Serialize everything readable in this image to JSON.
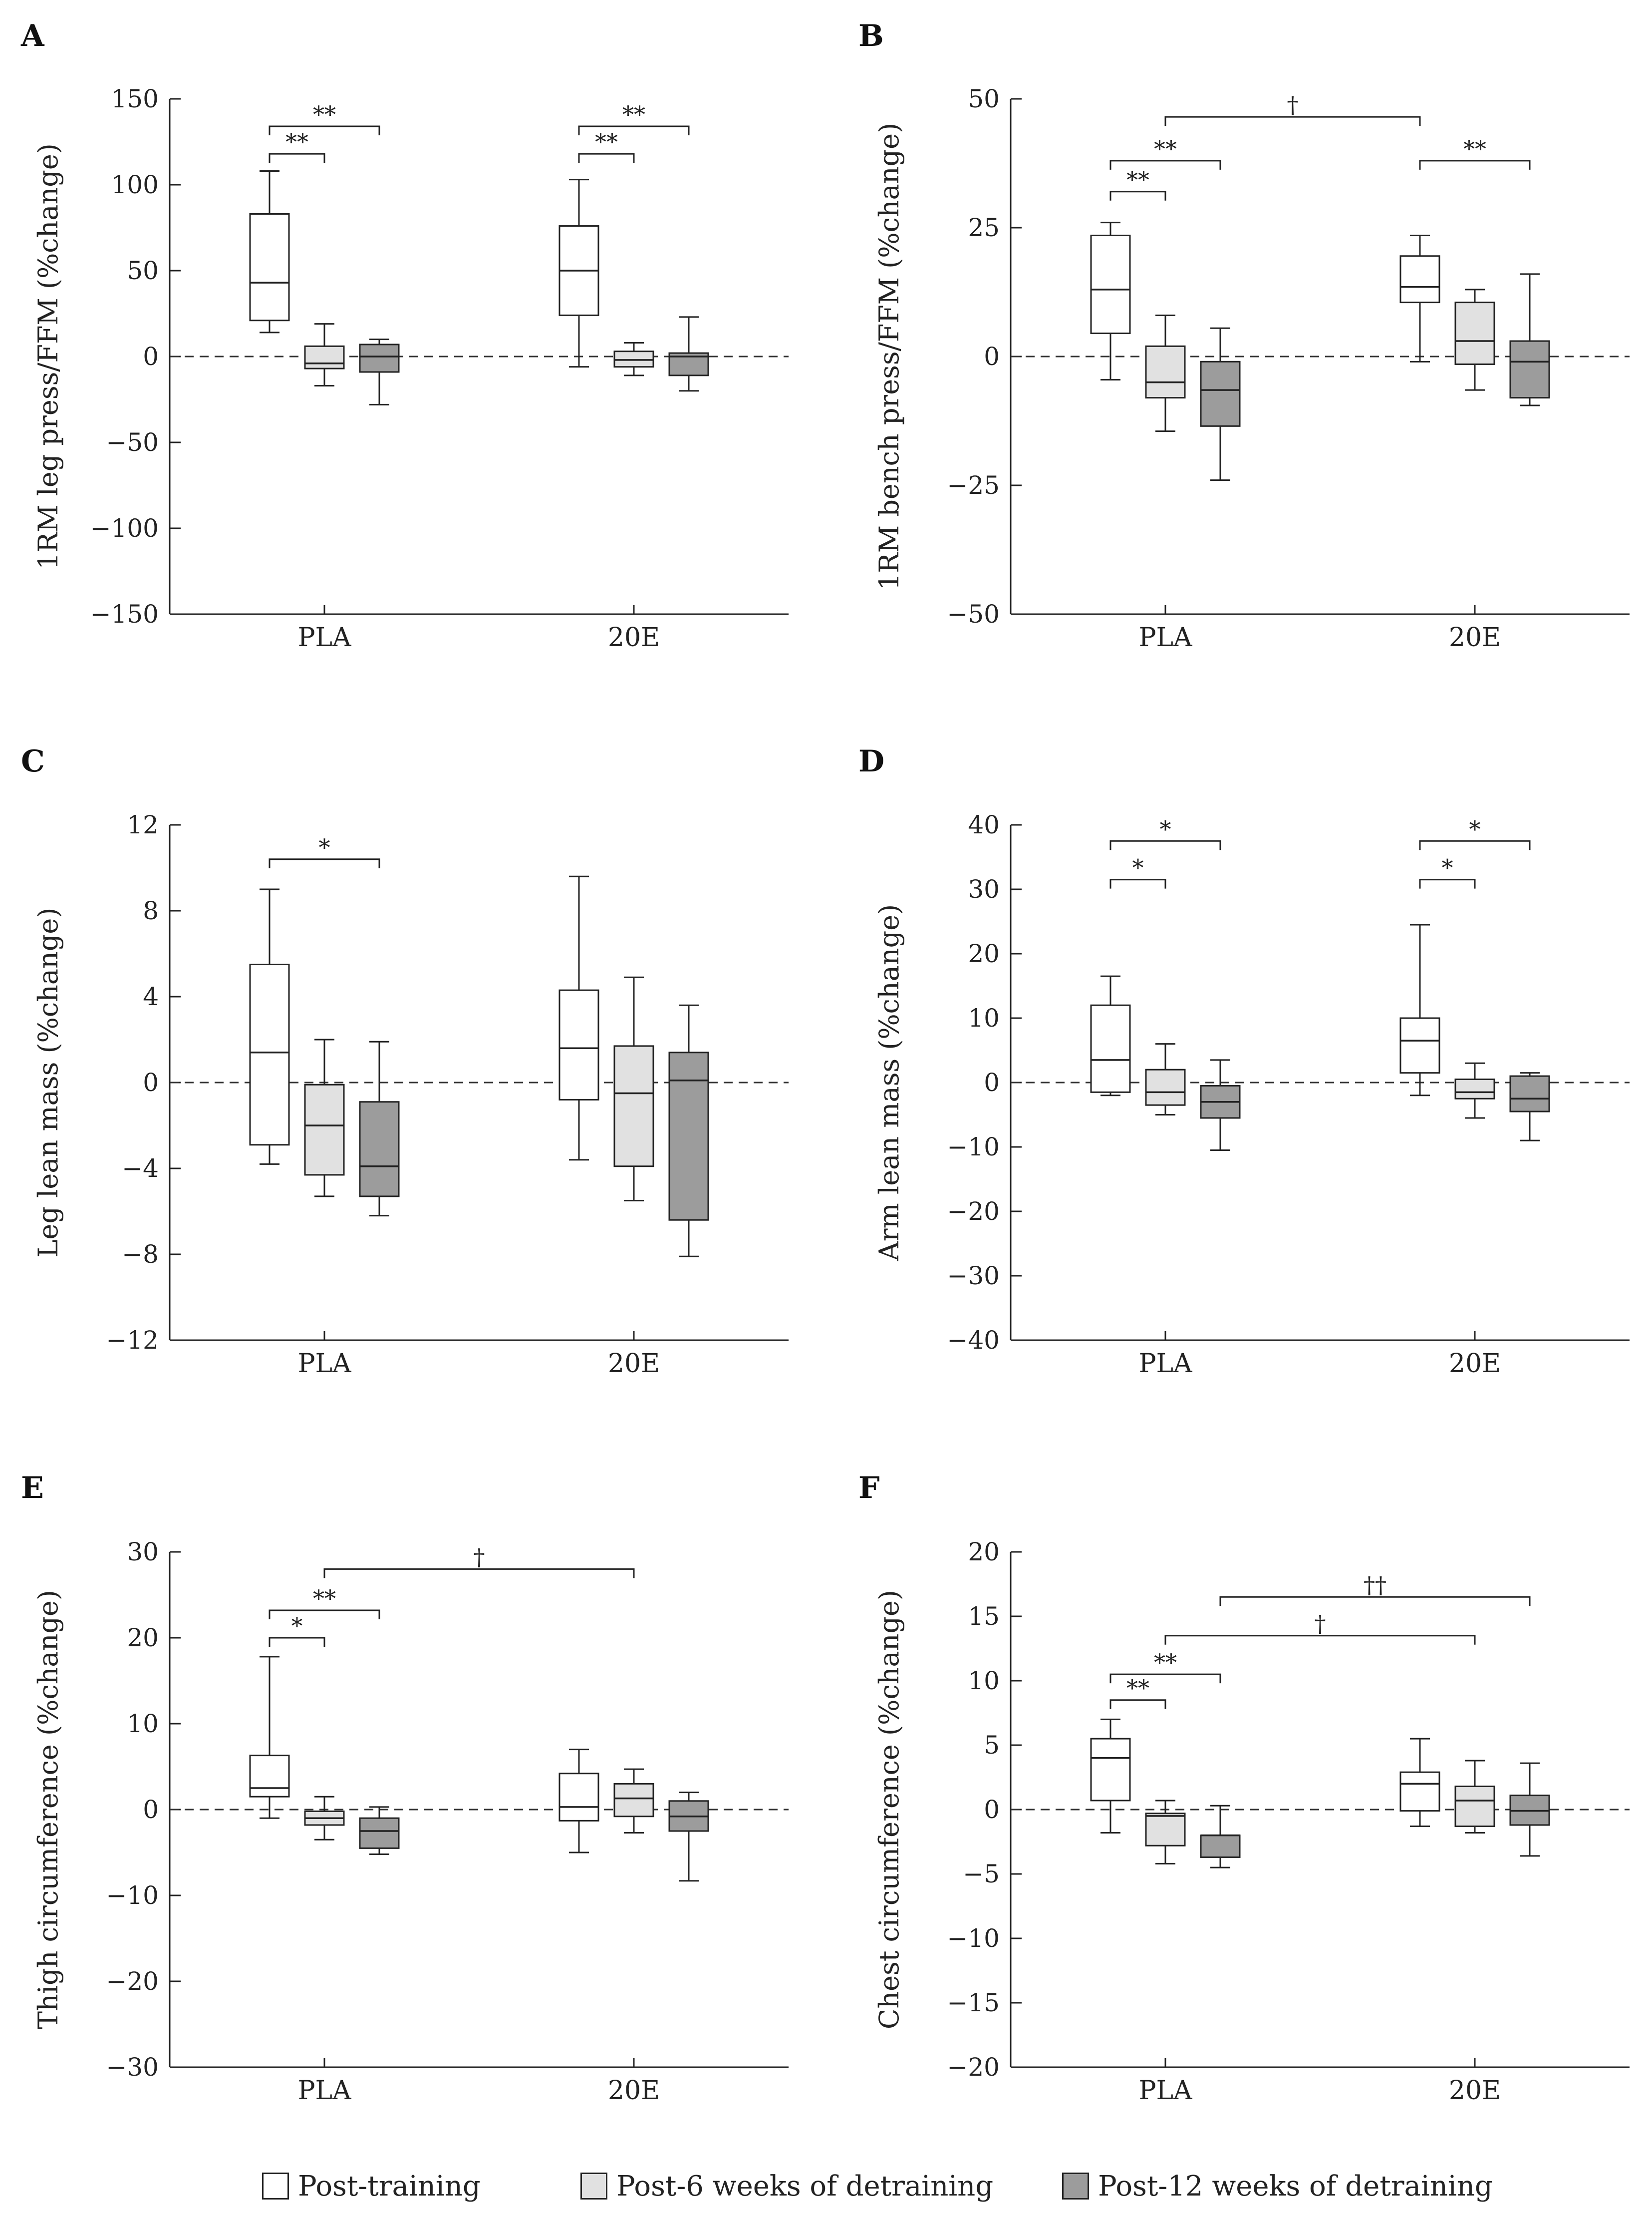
{
  "colors": {
    "post_training": "#ffffff",
    "post_6w": "#e1e1e1",
    "post_12w": "#9c9c9c",
    "stroke": "#222222"
  },
  "legend": [
    {
      "label": "Post-training",
      "color": "#ffffff"
    },
    {
      "label": "Post-6 weeks of detraining",
      "color": "#e1e1e1"
    },
    {
      "label": "Post-12 weeks of detraining",
      "color": "#9c9c9c"
    }
  ],
  "chart_data": [
    {
      "panel": "A",
      "type": "box",
      "ylabel": "1RM leg press/FFM (%change)",
      "ylim": [
        -150,
        150
      ],
      "yticks": [
        150,
        100,
        50,
        0,
        -50,
        -100,
        -150
      ],
      "ytick_labels": [
        "150",
        "100",
        "50",
        "0",
        "−50",
        "−100",
        "−150"
      ],
      "categories": [
        "PLA",
        "20E"
      ],
      "groups": [
        {
          "category": "PLA",
          "boxes": [
            {
              "min": 14,
              "q1": 21,
              "median": 43,
              "q3": 83,
              "max": 108
            },
            {
              "min": -17,
              "q1": -7,
              "median": -4,
              "q3": 6,
              "max": 19
            },
            {
              "min": -28,
              "q1": -9,
              "median": 0,
              "q3": 7,
              "max": 10
            }
          ]
        },
        {
          "category": "20E",
          "boxes": [
            {
              "min": -6,
              "q1": 24,
              "median": 50,
              "q3": 76,
              "max": 103
            },
            {
              "min": -11,
              "q1": -6,
              "median": -2,
              "q3": 3,
              "max": 8
            },
            {
              "min": -20,
              "q1": -11,
              "median": 0,
              "q3": 2,
              "max": 23
            }
          ]
        }
      ],
      "significance": [
        {
          "from": [
            0,
            0
          ],
          "to": [
            0,
            1
          ],
          "y": 118,
          "label": "**"
        },
        {
          "from": [
            0,
            0
          ],
          "to": [
            0,
            2
          ],
          "y": 134,
          "label": "**"
        },
        {
          "from": [
            1,
            0
          ],
          "to": [
            1,
            1
          ],
          "y": 118,
          "label": "**"
        },
        {
          "from": [
            1,
            0
          ],
          "to": [
            1,
            2
          ],
          "y": 134,
          "label": "**"
        }
      ]
    },
    {
      "panel": "B",
      "type": "box",
      "ylabel": "1RM bench press/FFM (%change)",
      "ylim": [
        -50,
        50
      ],
      "yticks": [
        50,
        25,
        0,
        -25,
        -50
      ],
      "ytick_labels": [
        "50",
        "25",
        "0",
        "−25",
        "−50"
      ],
      "categories": [
        "PLA",
        "20E"
      ],
      "groups": [
        {
          "category": "PLA",
          "boxes": [
            {
              "min": -4.5,
              "q1": 4.5,
              "median": 13,
              "q3": 23.5,
              "max": 26
            },
            {
              "min": -14.5,
              "q1": -8,
              "median": -5,
              "q3": 2,
              "max": 8
            },
            {
              "min": -24,
              "q1": -13.5,
              "median": -6.5,
              "q3": -1,
              "max": 5.5
            }
          ]
        },
        {
          "category": "20E",
          "boxes": [
            {
              "min": -1,
              "q1": 10.5,
              "median": 13.5,
              "q3": 19.5,
              "max": 23.5
            },
            {
              "min": -6.5,
              "q1": -1.5,
              "median": 3,
              "q3": 10.5,
              "max": 13
            },
            {
              "min": -9.5,
              "q1": -8,
              "median": -1,
              "q3": 3,
              "max": 16
            }
          ]
        }
      ],
      "significance": [
        {
          "from": [
            0,
            0
          ],
          "to": [
            0,
            1
          ],
          "y": 32,
          "label": "**"
        },
        {
          "from": [
            0,
            0
          ],
          "to": [
            0,
            2
          ],
          "y": 38,
          "label": "**"
        },
        {
          "from": [
            0,
            1
          ],
          "to": [
            1,
            0
          ],
          "y": 46.5,
          "label": "†"
        },
        {
          "from": [
            1,
            0
          ],
          "to": [
            1,
            2
          ],
          "y": 38,
          "label": "**"
        }
      ]
    },
    {
      "panel": "C",
      "type": "box",
      "ylabel": "Leg lean mass (%change)",
      "ylim": [
        -12,
        12
      ],
      "yticks": [
        12,
        8,
        4,
        0,
        -4,
        -8,
        -12
      ],
      "ytick_labels": [
        "12",
        "8",
        "4",
        "0",
        "−4",
        "−8",
        "−12"
      ],
      "categories": [
        "PLA",
        "20E"
      ],
      "groups": [
        {
          "category": "PLA",
          "boxes": [
            {
              "min": -3.8,
              "q1": -2.9,
              "median": 1.4,
              "q3": 5.5,
              "max": 9
            },
            {
              "min": -5.3,
              "q1": -4.3,
              "median": -2,
              "q3": -0.1,
              "max": 2
            },
            {
              "min": -6.2,
              "q1": -5.3,
              "median": -3.9,
              "q3": -0.9,
              "max": 1.9
            }
          ]
        },
        {
          "category": "20E",
          "boxes": [
            {
              "min": -3.6,
              "q1": -0.8,
              "median": 1.6,
              "q3": 4.3,
              "max": 9.6
            },
            {
              "min": -5.5,
              "q1": -3.9,
              "median": -0.5,
              "q3": 1.7,
              "max": 4.9
            },
            {
              "min": -8.1,
              "q1": -6.4,
              "median": 0.1,
              "q3": 1.4,
              "max": 3.6
            }
          ]
        }
      ],
      "significance": [
        {
          "from": [
            0,
            0
          ],
          "to": [
            0,
            2
          ],
          "y": 10.4,
          "label": "*"
        }
      ]
    },
    {
      "panel": "D",
      "type": "box",
      "ylabel": "Arm lean mass (%change)",
      "ylim": [
        -40,
        40
      ],
      "yticks": [
        40,
        30,
        20,
        10,
        0,
        -10,
        -20,
        -30,
        -40
      ],
      "ytick_labels": [
        "40",
        "30",
        "20",
        "10",
        "0",
        "−10",
        "−20",
        "−30",
        "−40"
      ],
      "categories": [
        "PLA",
        "20E"
      ],
      "groups": [
        {
          "category": "PLA",
          "boxes": [
            {
              "min": -2,
              "q1": -1.5,
              "median": 3.5,
              "q3": 12,
              "max": 16.5
            },
            {
              "min": -5,
              "q1": -3.5,
              "median": -1.5,
              "q3": 2,
              "max": 6
            },
            {
              "min": -10.5,
              "q1": -5.5,
              "median": -3,
              "q3": -0.5,
              "max": 3.5
            }
          ]
        },
        {
          "category": "20E",
          "boxes": [
            {
              "min": -2,
              "q1": 1.5,
              "median": 6.5,
              "q3": 10,
              "max": 24.5
            },
            {
              "min": -5.5,
              "q1": -2.5,
              "median": -1.5,
              "q3": 0.5,
              "max": 3
            },
            {
              "min": -9,
              "q1": -4.5,
              "median": -2.5,
              "q3": 1,
              "max": 1.5
            }
          ]
        }
      ],
      "significance": [
        {
          "from": [
            0,
            0
          ],
          "to": [
            0,
            1
          ],
          "y": 31.5,
          "label": "*"
        },
        {
          "from": [
            0,
            0
          ],
          "to": [
            0,
            2
          ],
          "y": 37.5,
          "label": "*"
        },
        {
          "from": [
            1,
            0
          ],
          "to": [
            1,
            1
          ],
          "y": 31.5,
          "label": "*"
        },
        {
          "from": [
            1,
            0
          ],
          "to": [
            1,
            2
          ],
          "y": 37.5,
          "label": "*"
        }
      ]
    },
    {
      "panel": "E",
      "type": "box",
      "ylabel": "Thigh circumference (%change)",
      "ylim": [
        -30,
        30
      ],
      "yticks": [
        30,
        20,
        10,
        0,
        -10,
        -20,
        -30
      ],
      "ytick_labels": [
        "30",
        "20",
        "10",
        "0",
        "−10",
        "−20",
        "−30"
      ],
      "categories": [
        "PLA",
        "20E"
      ],
      "groups": [
        {
          "category": "PLA",
          "boxes": [
            {
              "min": -1,
              "q1": 1.5,
              "median": 2.5,
              "q3": 6.3,
              "max": 17.8
            },
            {
              "min": -3.5,
              "q1": -1.8,
              "median": -1,
              "q3": -0.2,
              "max": 1.5
            },
            {
              "min": -5.2,
              "q1": -4.5,
              "median": -2.5,
              "q3": -1,
              "max": 0.3
            }
          ]
        },
        {
          "category": "20E",
          "boxes": [
            {
              "min": -5,
              "q1": -1.3,
              "median": 0.3,
              "q3": 4.2,
              "max": 7
            },
            {
              "min": -2.7,
              "q1": -0.8,
              "median": 1.3,
              "q3": 3,
              "max": 4.7
            },
            {
              "min": -8.3,
              "q1": -2.5,
              "median": -0.8,
              "q3": 1,
              "max": 2
            }
          ]
        }
      ],
      "significance": [
        {
          "from": [
            0,
            0
          ],
          "to": [
            0,
            1
          ],
          "y": 20,
          "label": "*"
        },
        {
          "from": [
            0,
            0
          ],
          "to": [
            0,
            2
          ],
          "y": 23.2,
          "label": "**"
        },
        {
          "from": [
            0,
            1
          ],
          "to": [
            1,
            1
          ],
          "y": 28,
          "label": "†"
        }
      ]
    },
    {
      "panel": "F",
      "type": "box",
      "ylabel": "Chest circumference (%change)",
      "ylim": [
        -20,
        20
      ],
      "yticks": [
        20,
        15,
        10,
        5,
        0,
        -5,
        -10,
        -15,
        -20
      ],
      "ytick_labels": [
        "20",
        "15",
        "10",
        "5",
        "0",
        "−5",
        "−10",
        "−15",
        "−20"
      ],
      "categories": [
        "PLA",
        "20E"
      ],
      "groups": [
        {
          "category": "PLA",
          "boxes": [
            {
              "min": -1.8,
              "q1": 0.7,
              "median": 4,
              "q3": 5.5,
              "max": 7
            },
            {
              "min": -4.2,
              "q1": -2.8,
              "median": -0.5,
              "q3": -0.3,
              "max": 0.7
            },
            {
              "min": -4.5,
              "q1": -3.7,
              "median": -2,
              "q3": -2,
              "max": 0.3
            }
          ]
        },
        {
          "category": "20E",
          "boxes": [
            {
              "min": -1.3,
              "q1": -0.1,
              "median": 2,
              "q3": 2.9,
              "max": 5.5
            },
            {
              "min": -1.8,
              "q1": -1.3,
              "median": 0.7,
              "q3": 1.8,
              "max": 3.8
            },
            {
              "min": -3.6,
              "q1": -1.2,
              "median": -0.1,
              "q3": 1.1,
              "max": 3.6
            }
          ]
        }
      ],
      "significance": [
        {
          "from": [
            0,
            0
          ],
          "to": [
            0,
            1
          ],
          "y": 8.5,
          "label": "**"
        },
        {
          "from": [
            0,
            0
          ],
          "to": [
            0,
            2
          ],
          "y": 10.5,
          "label": "**"
        },
        {
          "from": [
            0,
            1
          ],
          "to": [
            1,
            1
          ],
          "y": 13.5,
          "label": "†"
        },
        {
          "from": [
            0,
            2
          ],
          "to": [
            1,
            2
          ],
          "y": 16.5,
          "label": "††"
        }
      ]
    }
  ]
}
